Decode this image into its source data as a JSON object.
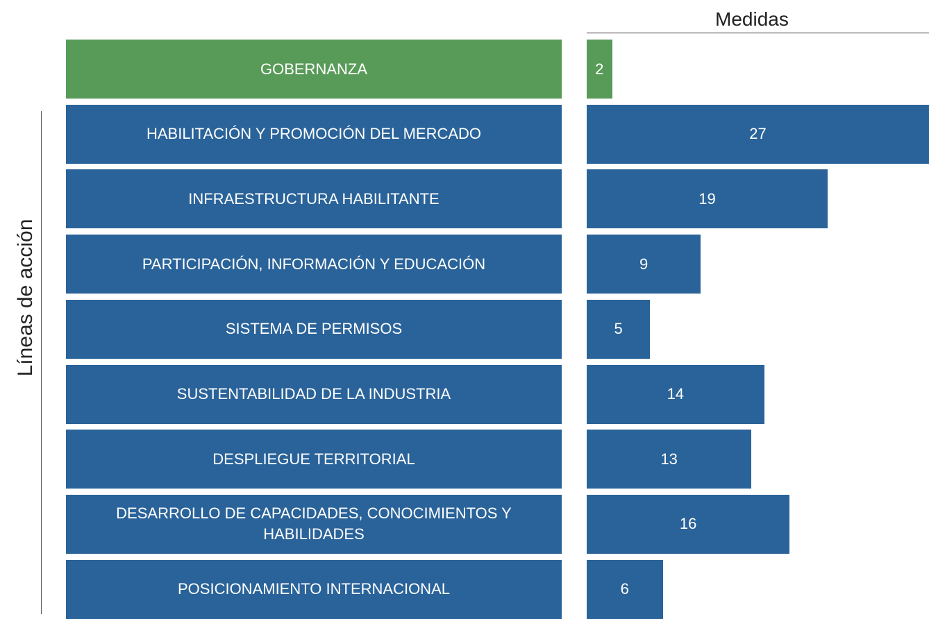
{
  "chart_data": {
    "type": "bar",
    "title": "Medidas",
    "y_axis_label": "Líneas de acción",
    "categories": [
      "GOBERNANZA",
      "HABILITACIÓN Y PROMOCIÓN DEL MERCADO",
      "INFRAESTRUCTURA HABILITANTE",
      "PARTICIPACIÓN, INFORMACIÓN Y EDUCACIÓN",
      "SISTEMA DE PERMISOS",
      "SUSTENTABILIDAD DE LA INDUSTRIA",
      "DESPLIEGUE TERRITORIAL",
      "DESARROLLO DE CAPACIDADES, CONOCIMIENTOS Y HABILIDADES",
      "POSICIONAMIENTO INTERNACIONAL"
    ],
    "values": [
      2,
      27,
      19,
      9,
      5,
      14,
      13,
      16,
      6
    ],
    "colors": [
      "#589a57",
      "#2a6399",
      "#2a6399",
      "#2a6399",
      "#2a6399",
      "#2a6399",
      "#2a6399",
      "#2a6399",
      "#2a6399"
    ]
  }
}
